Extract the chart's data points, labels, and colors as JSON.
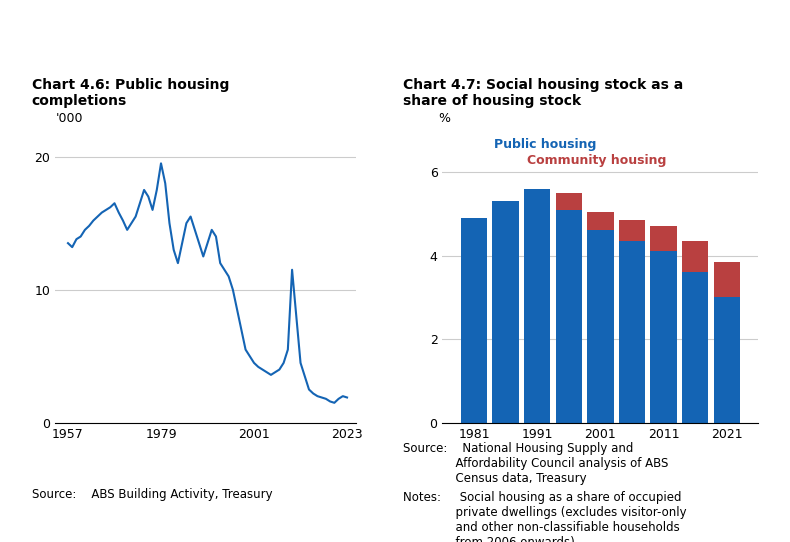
{
  "chart1": {
    "title": "Chart 4.6: Public housing\ncompletions",
    "ylabel": "'000",
    "source": "Source:    ABS Building Activity, Treasury",
    "line_color": "#1464b4",
    "line_width": 1.5,
    "yticks": [
      0,
      10,
      20
    ],
    "xticks": [
      1957,
      1979,
      2001,
      2023
    ],
    "years": [
      1957,
      1958,
      1959,
      1960,
      1961,
      1962,
      1963,
      1964,
      1965,
      1966,
      1967,
      1968,
      1969,
      1970,
      1971,
      1972,
      1973,
      1974,
      1975,
      1976,
      1977,
      1978,
      1979,
      1980,
      1981,
      1982,
      1983,
      1984,
      1985,
      1986,
      1987,
      1988,
      1989,
      1990,
      1991,
      1992,
      1993,
      1994,
      1995,
      1996,
      1997,
      1998,
      1999,
      2000,
      2001,
      2002,
      2003,
      2004,
      2005,
      2006,
      2007,
      2008,
      2009,
      2010,
      2011,
      2012,
      2013,
      2014,
      2015,
      2016,
      2017,
      2018,
      2019,
      2020,
      2021,
      2022,
      2023
    ],
    "values": [
      13.5,
      13.2,
      13.8,
      14.0,
      14.5,
      14.8,
      15.2,
      15.5,
      15.8,
      16.0,
      16.2,
      16.5,
      15.8,
      15.2,
      14.5,
      15.0,
      15.5,
      16.5,
      17.5,
      17.0,
      16.0,
      17.5,
      19.5,
      18.0,
      15.0,
      13.0,
      12.0,
      13.5,
      15.0,
      15.5,
      14.5,
      13.5,
      12.5,
      13.5,
      14.5,
      14.0,
      12.0,
      11.5,
      11.0,
      10.0,
      8.5,
      7.0,
      5.5,
      5.0,
      4.5,
      4.2,
      4.0,
      3.8,
      3.6,
      3.8,
      4.0,
      4.5,
      5.5,
      11.5,
      8.0,
      4.5,
      3.5,
      2.5,
      2.2,
      2.0,
      1.9,
      1.8,
      1.6,
      1.5,
      1.8,
      2.0,
      1.9
    ]
  },
  "chart2": {
    "title": "Chart 4.7: Social housing stock as a\nshare of housing stock",
    "ylabel": "%",
    "bar_color_public": "#1464b4",
    "bar_color_community": "#b94040",
    "legend_public": "Public housing",
    "legend_community": "Community housing",
    "yticks": [
      0,
      2,
      4,
      6
    ],
    "years": [
      1981,
      1986,
      1991,
      1996,
      2001,
      2006,
      2011,
      2016,
      2021
    ],
    "public_housing": [
      4.9,
      5.3,
      5.6,
      5.1,
      4.6,
      4.35,
      4.1,
      3.6,
      3.0
    ],
    "community_housing": [
      0.0,
      0.0,
      0.0,
      0.4,
      0.45,
      0.5,
      0.6,
      0.75,
      0.85
    ],
    "xticks": [
      1981,
      1991,
      2001,
      2011,
      2021
    ]
  }
}
